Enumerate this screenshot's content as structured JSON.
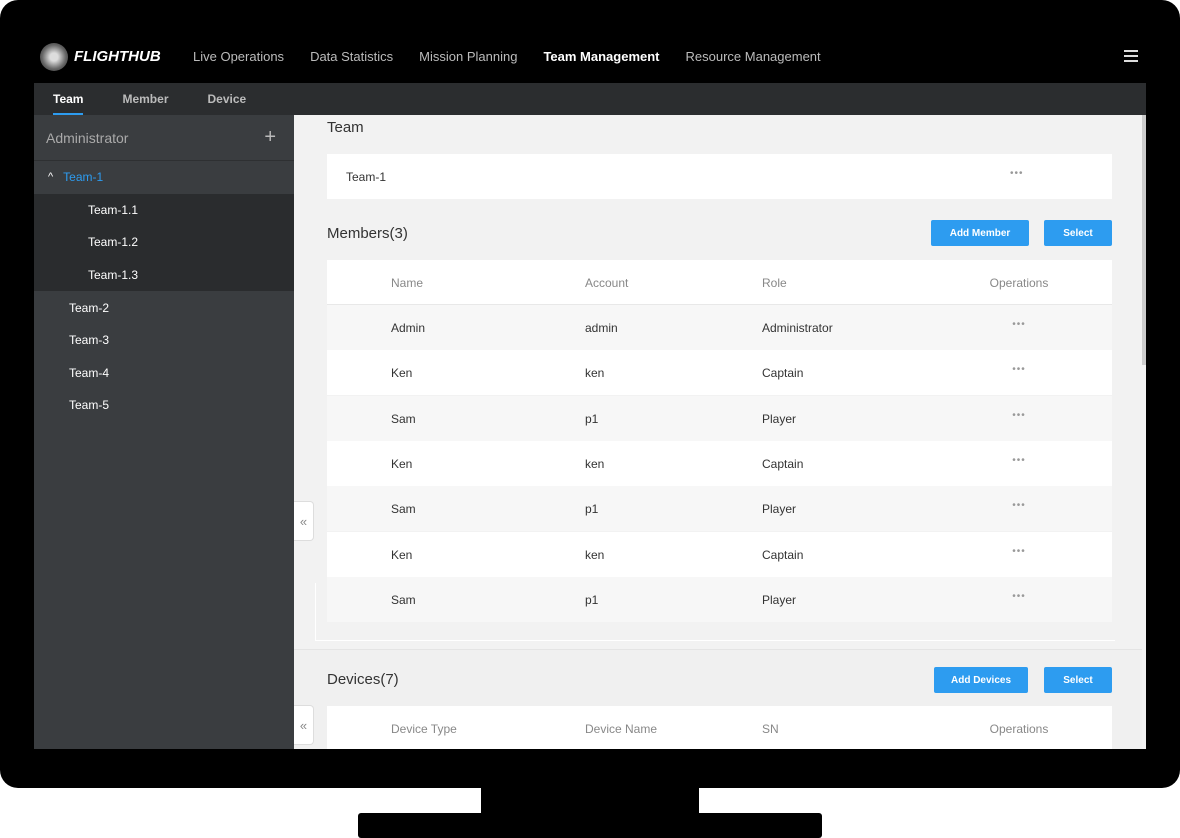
{
  "app": {
    "logo": "FLIGHTHUB",
    "nav": [
      "Live Operations",
      "Data Statistics",
      "Mission Planning",
      "Team Management",
      "Resource Management"
    ],
    "active_nav": "Team Management"
  },
  "subnav": [
    "Team",
    "Member",
    "Device"
  ],
  "sidebar": {
    "header": "Administrator",
    "selected": "Team-1",
    "children": [
      "Team-1.1",
      "Team-1.2",
      "Team-1.3"
    ],
    "others": [
      "Team-2",
      "Team-3",
      "Team-4",
      "Team-5"
    ]
  },
  "team": {
    "title": "Team",
    "name": "Team-1"
  },
  "members": {
    "title": "Members(3)",
    "add_label": "Add Member",
    "select_label": "Select",
    "columns": [
      "Name",
      "Account",
      "Role",
      "Operations"
    ],
    "rows": [
      [
        "Admin",
        "admin",
        "Administrator"
      ],
      [
        "Ken",
        "ken",
        "Captain"
      ],
      [
        "Sam",
        "p1",
        "Player"
      ],
      [
        "Ken",
        "ken",
        "Captain"
      ],
      [
        "Sam",
        "p1",
        "Player"
      ],
      [
        "Ken",
        "ken",
        "Captain"
      ],
      [
        "Sam",
        "p1",
        "Player"
      ]
    ]
  },
  "devices": {
    "title": "Devices(7)",
    "add_label": "Add Devices",
    "select_label": "Select",
    "columns": [
      "Device Type",
      "Device Name",
      "SN",
      "Operations"
    ]
  },
  "ops_icon": "•••",
  "collapse_icon": "«",
  "colors": {
    "accent": "#2d9cf0",
    "sidebar": "#3a3d40"
  }
}
